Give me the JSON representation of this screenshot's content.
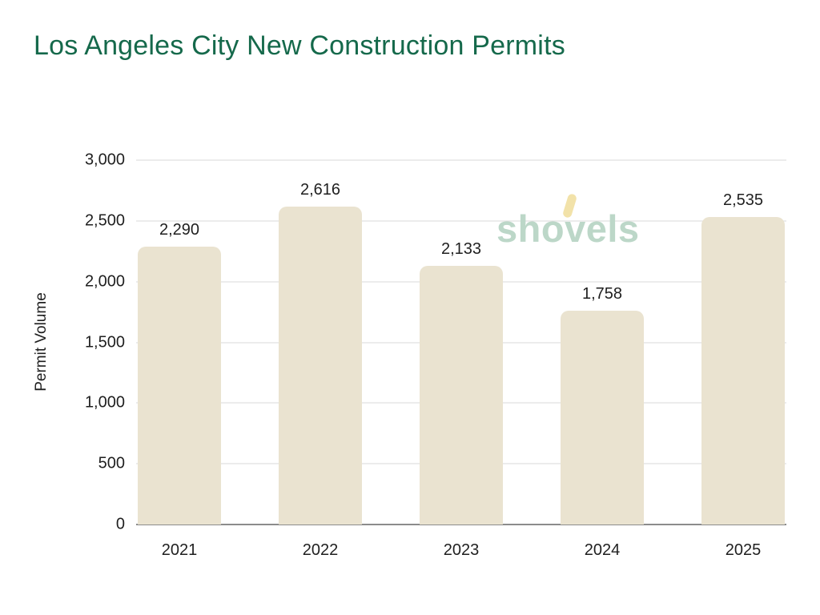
{
  "title": {
    "text": "Los Angeles City New Construction Permits",
    "color": "#15694b"
  },
  "watermark": {
    "part1": "sho",
    "part2": "v",
    "part3": "els",
    "text_color": "#bcd7c8",
    "handle_color": "#f2e2a9"
  },
  "chart_data": {
    "type": "bar",
    "title": "Los Angeles City New Construction Permits",
    "xlabel": "",
    "ylabel": "Permit Volume",
    "categories": [
      "2021",
      "2022",
      "2023",
      "2024",
      "2025"
    ],
    "values": [
      2290,
      2616,
      2133,
      1758,
      2535
    ],
    "value_labels": [
      "2,290",
      "2,616",
      "2,133",
      "1,758",
      "2,535"
    ],
    "ylim": [
      0,
      3000
    ],
    "yticks": [
      0,
      500,
      1000,
      1500,
      2000,
      2500,
      3000
    ],
    "ytick_labels": [
      "0",
      "500",
      "1,000",
      "1,500",
      "2,000",
      "2,500",
      "3,000"
    ],
    "grid": true,
    "legend": "none",
    "bar_color": "#eae3d0",
    "gridline_color": "#dadada",
    "axis_line_color": "#8c8c8c",
    "label_color": "#1f1f1f"
  }
}
